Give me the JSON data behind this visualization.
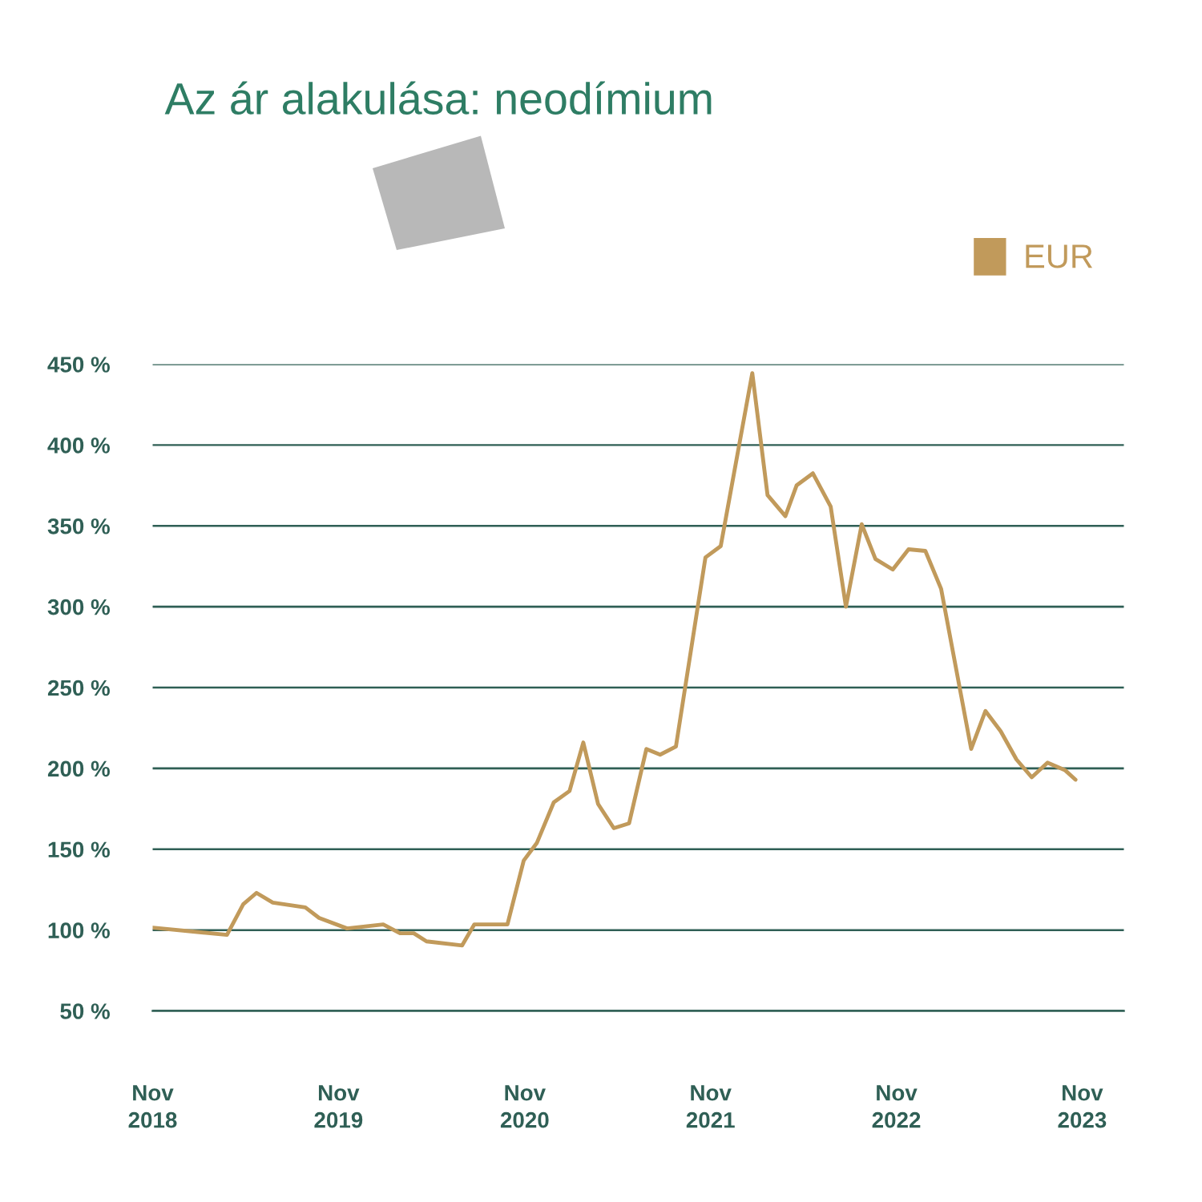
{
  "chart_data": {
    "type": "line",
    "title": "Az ár alakulása: neodímium",
    "x": [
      "2018-11-01",
      "2019-03-27",
      "2019-04-28",
      "2019-05-24",
      "2019-06-25",
      "2019-08-28",
      "2019-09-24",
      "2019-11-18",
      "2020-01-28",
      "2020-03-01",
      "2020-03-28",
      "2020-04-22",
      "2020-07-01",
      "2020-07-25",
      "2020-09-28",
      "2020-10-30",
      "2020-11-25",
      "2020-12-28",
      "2021-01-28",
      "2021-02-24",
      "2021-03-25",
      "2021-04-25",
      "2021-05-25",
      "2021-06-28",
      "2021-07-25",
      "2021-08-25",
      "2021-10-22",
      "2021-11-21",
      "2022-01-22",
      "2022-02-21",
      "2022-03-28",
      "2022-04-19",
      "2022-05-21",
      "2022-06-25",
      "2022-07-25",
      "2022-08-25",
      "2022-09-21",
      "2022-10-25",
      "2022-11-25",
      "2022-12-28",
      "2023-01-28",
      "2023-03-28",
      "2023-04-25",
      "2023-05-25",
      "2023-06-25",
      "2023-07-25",
      "2023-08-25",
      "2023-09-28",
      "2023-10-19"
    ],
    "series": [
      {
        "name": "EUR",
        "color": "#c19a5b",
        "values": [
          101.5,
          97,
          116,
          123,
          117,
          114,
          107.5,
          101,
          103.5,
          98,
          98,
          93,
          90.5,
          103.5,
          103.5,
          143,
          154,
          179,
          186,
          216,
          178,
          163,
          166,
          212,
          208.5,
          213.5,
          330.5,
          337.5,
          444.5,
          369,
          356,
          375,
          382.5,
          362,
          300,
          351,
          329.5,
          323,
          335.5,
          334.5,
          311,
          212,
          235.5,
          223,
          205.5,
          194.5,
          203.5,
          199,
          193
        ]
      }
    ],
    "xlim": [
      "2018-11-01",
      "2024-01-22"
    ],
    "xticks": [
      {
        "value": "2018-11-01",
        "label": "Nov\n2018"
      },
      {
        "value": "2019-11-01",
        "label": "Nov\n2019"
      },
      {
        "value": "2020-11-01",
        "label": "Nov\n2020"
      },
      {
        "value": "2021-11-01",
        "label": "Nov\n2021"
      },
      {
        "value": "2022-11-01",
        "label": "Nov\n2022"
      },
      {
        "value": "2023-11-01",
        "label": "Nov\n2023"
      }
    ],
    "ylim": [
      50,
      450
    ],
    "yticks": [
      {
        "value": 50,
        "label": "50 %"
      },
      {
        "value": 100,
        "label": "100 %"
      },
      {
        "value": 150,
        "label": "150 %"
      },
      {
        "value": 200,
        "label": "200 %"
      },
      {
        "value": 250,
        "label": "250 %"
      },
      {
        "value": 300,
        "label": "300 %"
      },
      {
        "value": 350,
        "label": "350 %"
      },
      {
        "value": 400,
        "label": "400 %"
      },
      {
        "value": 450,
        "label": "450 %"
      }
    ],
    "grid": "y",
    "legend": "top right",
    "marker": "none",
    "line_style": "solid"
  }
}
